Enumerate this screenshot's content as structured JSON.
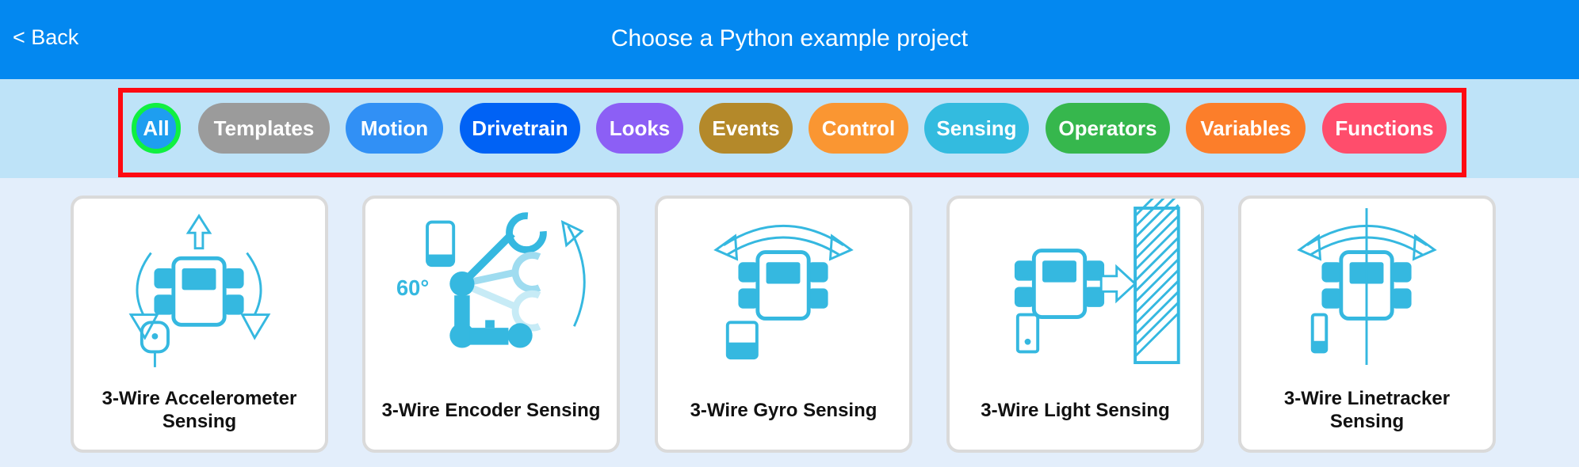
{
  "header": {
    "back_label": "< Back",
    "title": "Choose a Python example project"
  },
  "filters": [
    {
      "label": "All",
      "color": "#1e9ef0",
      "selected": true
    },
    {
      "label": "Templates",
      "color": "#9b9b9b"
    },
    {
      "label": "Motion",
      "color": "#3190f5"
    },
    {
      "label": "Drivetrain",
      "color": "#0062f5"
    },
    {
      "label": "Looks",
      "color": "#8c5ff5"
    },
    {
      "label": "Events",
      "color": "#b4892a"
    },
    {
      "label": "Control",
      "color": "#fa9632"
    },
    {
      "label": "Sensing",
      "color": "#33bbdf"
    },
    {
      "label": "Operators",
      "color": "#36b74d"
    },
    {
      "label": "Variables",
      "color": "#fc7e2a"
    },
    {
      "label": "Functions",
      "color": "#ff4d6c"
    }
  ],
  "highlight_color": "#ff0a12",
  "icon_color": "#35b8e0",
  "projects": [
    {
      "title": "3-Wire Accelerometer Sensing",
      "icon": "accelerometer-robot-icon"
    },
    {
      "title": "3-Wire Encoder Sensing",
      "icon": "encoder-arm-icon"
    },
    {
      "title": "3-Wire Gyro Sensing",
      "icon": "gyro-robot-icon"
    },
    {
      "title": "3-Wire Light Sensing",
      "icon": "light-sensor-robot-icon"
    },
    {
      "title": "3-Wire Linetracker Sensing",
      "icon": "linetracker-robot-icon"
    }
  ]
}
